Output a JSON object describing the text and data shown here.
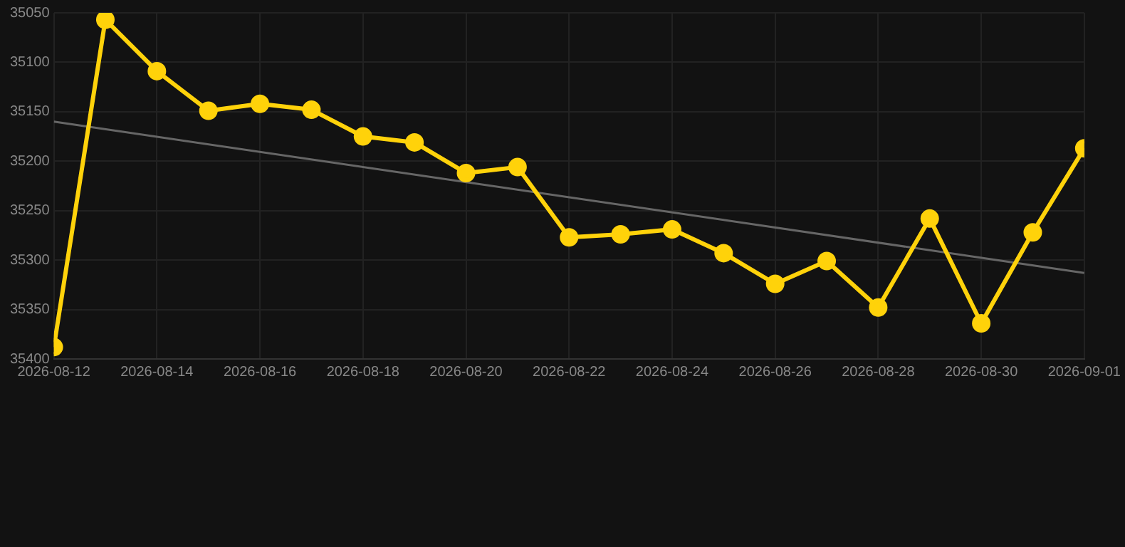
{
  "chart_data": {
    "type": "line",
    "x": [
      "2026-08-12",
      "2026-08-13",
      "2026-08-14",
      "2026-08-15",
      "2026-08-16",
      "2026-08-17",
      "2026-08-18",
      "2026-08-19",
      "2026-08-20",
      "2026-08-21",
      "2026-08-22",
      "2026-08-23",
      "2026-08-24",
      "2026-08-25",
      "2026-08-26",
      "2026-08-27",
      "2026-08-28",
      "2026-08-29",
      "2026-08-30",
      "2026-08-31",
      "2026-09-01"
    ],
    "series": [
      {
        "color": "#ffd20a",
        "marker": "circle",
        "values": [
          35388,
          35057,
          35109,
          35149,
          35142,
          35148,
          35175,
          35181,
          35212,
          35206,
          35277,
          35274,
          35269,
          35293,
          35324,
          35301,
          35348,
          35258,
          35364,
          35272,
          35187
        ]
      },
      {
        "type": "line",
        "color": "#666666",
        "marker": "none",
        "x": [
          "2026-08-12",
          "2026-09-01"
        ],
        "values": [
          35160,
          35313
        ]
      }
    ],
    "xlim": [
      "2026-08-12",
      "2026-09-01"
    ],
    "xticks": [
      "2026-08-12",
      "2026-08-14",
      "2026-08-16",
      "2026-08-18",
      "2026-08-20",
      "2026-08-22",
      "2026-08-24",
      "2026-08-26",
      "2026-08-28",
      "2026-08-30",
      "2026-09-01"
    ],
    "ylim": [
      35400,
      35050
    ],
    "yticks": [
      35050,
      35100,
      35150,
      35200,
      35250,
      35300,
      35350,
      35400
    ],
    "grid": true,
    "legend": false,
    "line_style": "solid"
  }
}
